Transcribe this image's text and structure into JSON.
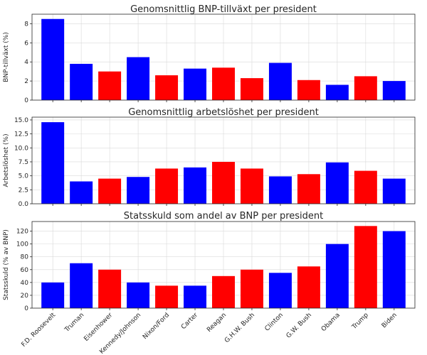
{
  "colors": {
    "democrat": "#0000ff",
    "republican": "#ff0000",
    "grid": "#d9d9d9",
    "axis": "#262626"
  },
  "chart_data": [
    {
      "type": "bar",
      "title": "Genomsnittlig BNP-tillväxt per president",
      "xlabel": "",
      "ylabel": "BNP-tillväxt (%)",
      "ylim": [
        0,
        9
      ],
      "yticks": [
        0,
        2,
        4,
        6,
        8
      ],
      "ytick_labels": [
        "0",
        "2",
        "4",
        "6",
        "8"
      ],
      "grid": true,
      "categories": [
        "F.D. Roosevelt",
        "Truman",
        "Eisenhower",
        "Kennedy/Johnson",
        "Nixon/Ford",
        "Carter",
        "Reagan",
        "G.H.W. Bush",
        "Clinton",
        "G.W. Bush",
        "Obama",
        "Trump",
        "Biden"
      ],
      "parties": [
        "D",
        "D",
        "R",
        "D",
        "R",
        "D",
        "R",
        "R",
        "D",
        "R",
        "D",
        "R",
        "D"
      ],
      "values": [
        8.5,
        3.8,
        3.0,
        4.5,
        2.6,
        3.3,
        3.4,
        2.3,
        3.9,
        2.1,
        1.6,
        2.5,
        2.0
      ]
    },
    {
      "type": "bar",
      "title": "Genomsnittlig arbetslöshet per president",
      "xlabel": "",
      "ylabel": "Arbetslöshet (%)",
      "ylim": [
        0,
        15.5
      ],
      "yticks": [
        0,
        2.5,
        5,
        7.5,
        10,
        12.5,
        15
      ],
      "ytick_labels": [
        "0.0",
        "2.5",
        "5.0",
        "7.5",
        "10.0",
        "12.5",
        "15.0"
      ],
      "grid": true,
      "categories": [
        "F.D. Roosevelt",
        "Truman",
        "Eisenhower",
        "Kennedy/Johnson",
        "Nixon/Ford",
        "Carter",
        "Reagan",
        "G.H.W. Bush",
        "Clinton",
        "G.W. Bush",
        "Obama",
        "Trump",
        "Biden"
      ],
      "parties": [
        "D",
        "D",
        "R",
        "D",
        "R",
        "D",
        "R",
        "R",
        "D",
        "R",
        "D",
        "R",
        "D"
      ],
      "values": [
        14.6,
        4.0,
        4.5,
        4.8,
        6.3,
        6.5,
        7.5,
        6.3,
        4.9,
        5.3,
        7.4,
        5.9,
        4.5
      ]
    },
    {
      "type": "bar",
      "title": "Statsskuld som andel av BNP per president",
      "xlabel": "",
      "ylabel": "Statsskuld (% av BNP)",
      "ylim": [
        0,
        135
      ],
      "yticks": [
        0,
        20,
        40,
        60,
        80,
        100,
        120
      ],
      "ytick_labels": [
        "0",
        "20",
        "40",
        "60",
        "80",
        "100",
        "120"
      ],
      "grid": true,
      "categories": [
        "F.D. Roosevelt",
        "Truman",
        "Eisenhower",
        "Kennedy/Johnson",
        "Nixon/Ford",
        "Carter",
        "Reagan",
        "G.H.W. Bush",
        "Clinton",
        "G.W. Bush",
        "Obama",
        "Trump",
        "Biden"
      ],
      "parties": [
        "D",
        "D",
        "R",
        "D",
        "R",
        "D",
        "R",
        "R",
        "D",
        "R",
        "D",
        "R",
        "D"
      ],
      "values": [
        40,
        70,
        60,
        40,
        35,
        35,
        50,
        60,
        55,
        65,
        100,
        128,
        120
      ]
    }
  ]
}
